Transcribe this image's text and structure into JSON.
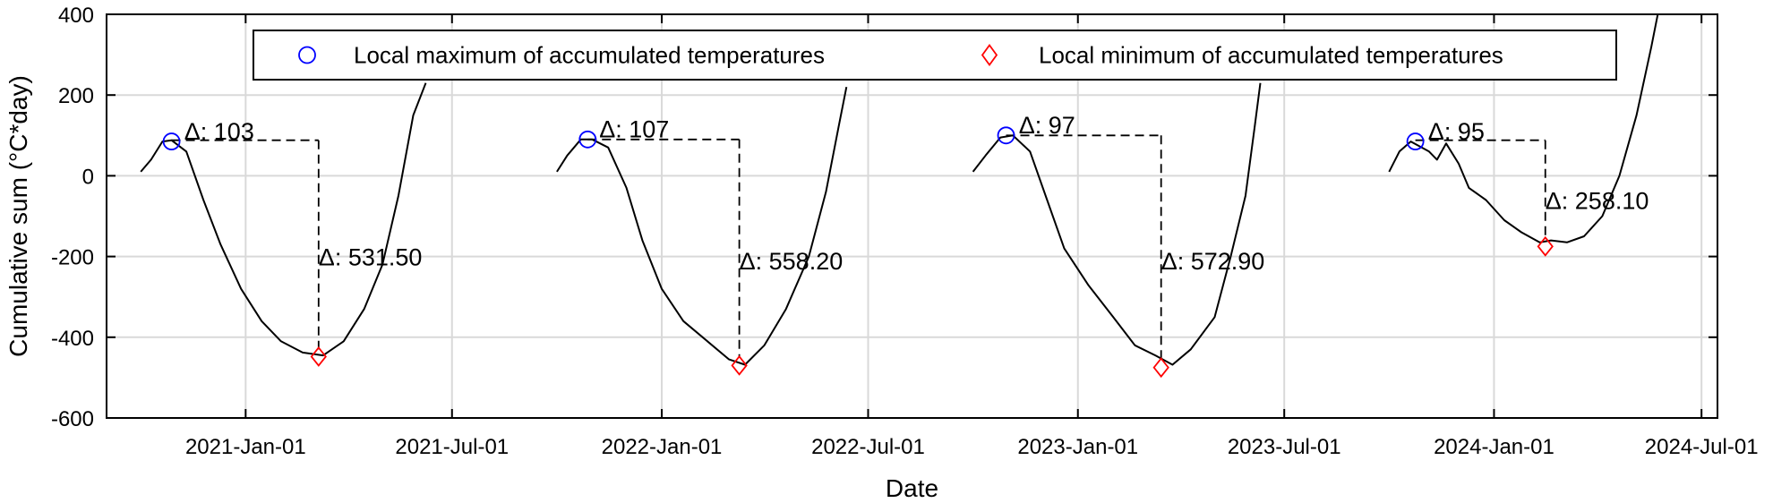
{
  "chart_data": {
    "type": "line",
    "xlabel": "Date",
    "ylabel": "Cumulative sum (°C*day)",
    "xlim": [
      "2020-09-01",
      "2024-07-15"
    ],
    "ylim": [
      -600,
      400
    ],
    "grid": true,
    "yticks": [
      -600,
      -400,
      -200,
      0,
      200,
      400
    ],
    "xticks": [
      {
        "date": "2021-01-01",
        "label": "2021-Jan-01"
      },
      {
        "date": "2021-07-01",
        "label": "2021-Jul-01"
      },
      {
        "date": "2022-01-01",
        "label": "2022-Jan-01"
      },
      {
        "date": "2022-07-01",
        "label": "2022-Jul-01"
      },
      {
        "date": "2023-01-01",
        "label": "2023-Jan-01"
      },
      {
        "date": "2023-07-01",
        "label": "2023-Jul-01"
      },
      {
        "date": "2024-01-01",
        "label": "2024-Jan-01"
      },
      {
        "date": "2024-07-01",
        "label": "2024-Jul-01"
      }
    ],
    "legend": {
      "placement": "top-center",
      "entries": [
        {
          "label": "Local maximum of accumulated temperatures",
          "marker": "circle",
          "color": "#0000ff"
        },
        {
          "label": "Local minimum of accumulated temperatures",
          "marker": "diamond",
          "color": "#ff0000"
        }
      ]
    },
    "line_color": "#000000",
    "series": [
      {
        "points": [
          [
            "2020-10-01",
            10
          ],
          [
            "2020-10-10",
            40
          ],
          [
            "2020-10-20",
            85
          ],
          [
            "2020-10-28",
            88
          ],
          [
            "2020-11-10",
            60
          ],
          [
            "2020-11-25",
            -60
          ],
          [
            "2020-12-10",
            -170
          ],
          [
            "2020-12-28",
            -280
          ],
          [
            "2021-01-15",
            -360
          ],
          [
            "2021-02-01",
            -410
          ],
          [
            "2021-02-20",
            -438
          ],
          [
            "2021-03-10",
            -445
          ],
          [
            "2021-03-28",
            -410
          ],
          [
            "2021-04-15",
            -330
          ],
          [
            "2021-05-01",
            -220
          ],
          [
            "2021-05-15",
            -50
          ],
          [
            "2021-05-28",
            150
          ],
          [
            "2021-06-08",
            230
          ]
        ]
      },
      {
        "points": [
          [
            "2021-10-01",
            10
          ],
          [
            "2021-10-10",
            50
          ],
          [
            "2021-10-22",
            90
          ],
          [
            "2021-11-01",
            90
          ],
          [
            "2021-11-15",
            70
          ],
          [
            "2021-12-01",
            -30
          ],
          [
            "2021-12-15",
            -160
          ],
          [
            "2022-01-01",
            -280
          ],
          [
            "2022-01-20",
            -360
          ],
          [
            "2022-02-10",
            -410
          ],
          [
            "2022-03-01",
            -455
          ],
          [
            "2022-03-15",
            -468
          ],
          [
            "2022-04-01",
            -420
          ],
          [
            "2022-04-20",
            -330
          ],
          [
            "2022-05-10",
            -200
          ],
          [
            "2022-05-25",
            -40
          ],
          [
            "2022-06-05",
            120
          ],
          [
            "2022-06-12",
            220
          ]
        ]
      },
      {
        "points": [
          [
            "2022-10-01",
            10
          ],
          [
            "2022-10-12",
            50
          ],
          [
            "2022-10-25",
            95
          ],
          [
            "2022-11-05",
            100
          ],
          [
            "2022-11-20",
            60
          ],
          [
            "2022-12-05",
            -60
          ],
          [
            "2022-12-20",
            -180
          ],
          [
            "2023-01-10",
            -270
          ],
          [
            "2023-02-01",
            -350
          ],
          [
            "2023-02-20",
            -420
          ],
          [
            "2023-03-10",
            -445
          ],
          [
            "2023-03-25",
            -468
          ],
          [
            "2023-04-10",
            -430
          ],
          [
            "2023-05-01",
            -350
          ],
          [
            "2023-05-15",
            -200
          ],
          [
            "2023-05-28",
            -50
          ],
          [
            "2023-06-05",
            120
          ],
          [
            "2023-06-10",
            230
          ]
        ]
      },
      {
        "points": [
          [
            "2023-10-01",
            10
          ],
          [
            "2023-10-10",
            60
          ],
          [
            "2023-10-20",
            85
          ],
          [
            "2023-11-05",
            60
          ],
          [
            "2023-11-12",
            40
          ],
          [
            "2023-11-20",
            80
          ],
          [
            "2023-12-01",
            30
          ],
          [
            "2023-12-10",
            -30
          ],
          [
            "2023-12-25",
            -60
          ],
          [
            "2024-01-10",
            -110
          ],
          [
            "2024-01-25",
            -140
          ],
          [
            "2024-02-10",
            -165
          ],
          [
            "2024-02-20",
            -160
          ],
          [
            "2024-03-05",
            -165
          ],
          [
            "2024-03-20",
            -150
          ],
          [
            "2024-04-05",
            -100
          ],
          [
            "2024-04-20",
            0
          ],
          [
            "2024-05-05",
            150
          ],
          [
            "2024-05-18",
            320
          ],
          [
            "2024-05-25",
            420
          ]
        ]
      }
    ],
    "maxima": [
      {
        "date": "2020-10-28",
        "value": 85
      },
      {
        "date": "2021-10-28",
        "value": 90
      },
      {
        "date": "2022-10-30",
        "value": 100
      },
      {
        "date": "2023-10-24",
        "value": 85
      }
    ],
    "minima": [
      {
        "date": "2021-03-06",
        "value": -448
      },
      {
        "date": "2022-03-10",
        "value": -470
      },
      {
        "date": "2023-03-15",
        "value": -475
      },
      {
        "date": "2024-02-15",
        "value": -175
      }
    ],
    "annotations": [
      {
        "label": "Δ: 103",
        "date": "2020-11-05",
        "value": 90,
        "vline_date": "2021-03-06",
        "vline_top": 88,
        "vline_bottom": -430,
        "delta_label": "Δ: 531.50",
        "delta_date": "2021-03-06",
        "delta_value": -200
      },
      {
        "label": "Δ: 107",
        "date": "2021-11-04",
        "value": 95,
        "vline_date": "2022-03-10",
        "vline_top": 90,
        "vline_bottom": -450,
        "delta_label": "Δ: 558.20",
        "delta_date": "2022-03-10",
        "delta_value": -210
      },
      {
        "label": "Δ: 97",
        "date": "2022-11-07",
        "value": 105,
        "vline_date": "2023-03-15",
        "vline_top": 100,
        "vline_bottom": -455,
        "delta_label": "Δ: 572.90",
        "delta_date": "2023-03-15",
        "delta_value": -210
      },
      {
        "label": "Δ: 95",
        "date": "2023-11-01",
        "value": 90,
        "vline_date": "2024-02-15",
        "vline_top": 88,
        "vline_bottom": -150,
        "delta_label": "Δ: 258.10",
        "delta_date": "2024-02-15",
        "delta_value": -60
      }
    ]
  }
}
